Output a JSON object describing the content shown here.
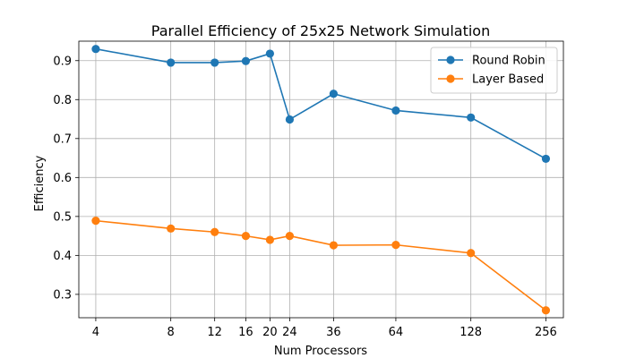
{
  "chart_data": {
    "type": "line",
    "title": "Parallel Efficiency of 25x25 Network Simulation",
    "xlabel": "Num Processors",
    "ylabel": "Efficiency",
    "xscale": "log2",
    "x": [
      4,
      8,
      12,
      16,
      20,
      24,
      36,
      64,
      128,
      256
    ],
    "x_tick_labels": [
      "4",
      "8",
      "12",
      "16",
      "20",
      "24",
      "36",
      "64",
      "128",
      "256"
    ],
    "y_ticks": [
      0.3,
      0.4,
      0.5,
      0.6,
      0.7,
      0.8,
      0.9
    ],
    "y_tick_labels": [
      "0.3",
      "0.4",
      "0.5",
      "0.6",
      "0.7",
      "0.8",
      "0.9"
    ],
    "ylim": [
      0.24,
      0.95
    ],
    "grid": true,
    "legend_position": "top-right",
    "series": [
      {
        "name": "Round Robin",
        "color": "#1f77b4",
        "values": [
          0.93,
          0.895,
          0.895,
          0.899,
          0.918,
          0.749,
          0.815,
          0.772,
          0.754,
          0.648
        ]
      },
      {
        "name": "Layer Based",
        "color": "#ff7f0e",
        "values": [
          0.489,
          0.469,
          0.46,
          0.45,
          0.44,
          0.45,
          0.426,
          0.427,
          0.406,
          0.259
        ]
      }
    ]
  }
}
